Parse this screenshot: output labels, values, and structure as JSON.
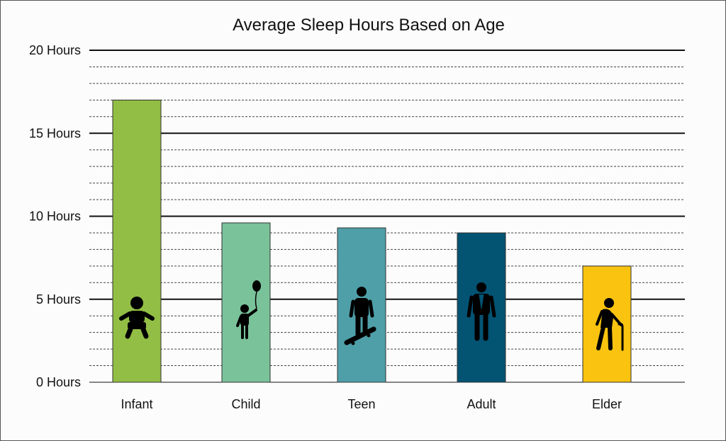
{
  "chart_data": {
    "type": "bar",
    "title": "Average Sleep Hours Based on Age",
    "xlabel": "",
    "ylabel": "",
    "categories": [
      "Infant",
      "Child",
      "Teen",
      "Adult",
      "Elder"
    ],
    "values": [
      17,
      9.6,
      9.3,
      9.0,
      7.0
    ],
    "ylim": [
      0,
      20
    ],
    "major_ticks": [
      0,
      5,
      10,
      15,
      20
    ],
    "tick_labels": [
      "0 Hours",
      "5 Hours",
      "10 Hours",
      "15 Hours",
      "20 Hours"
    ],
    "minor_tick_step": 1,
    "grid": true,
    "colors": [
      "#92be45",
      "#7ac29a",
      "#4e9fa8",
      "#035373",
      "#f9c30f"
    ],
    "icons": [
      "baby-icon",
      "child-with-balloon-icon",
      "teen-skateboard-icon",
      "adult-tie-icon",
      "elder-cane-icon"
    ]
  }
}
